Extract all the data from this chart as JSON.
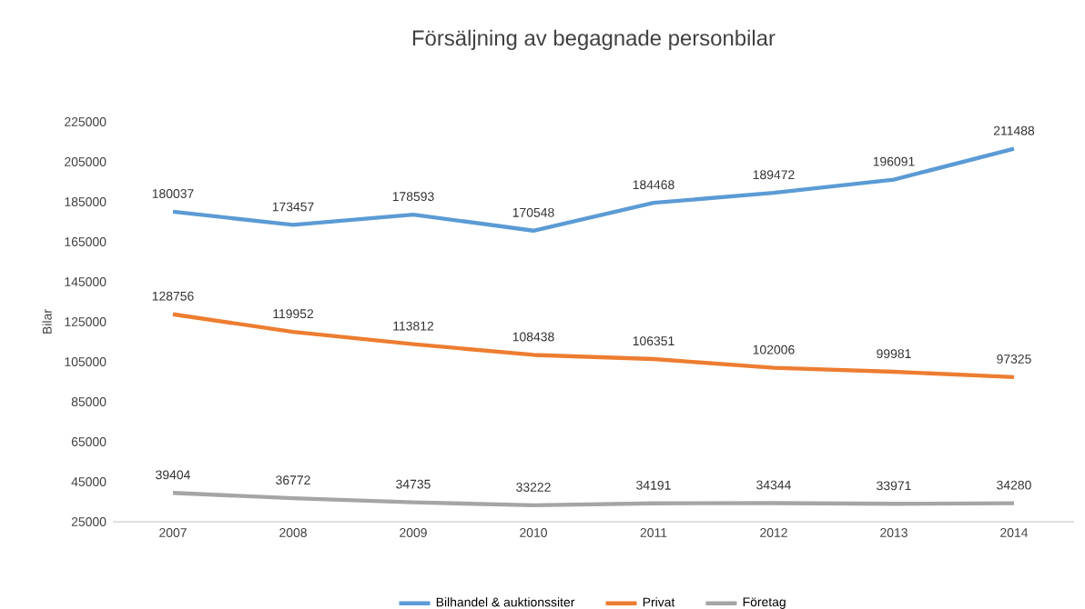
{
  "chart_data": {
    "type": "line",
    "title": "Försäljning av begagnade personbilar",
    "ylabel": "Bilar",
    "categories": [
      "2007",
      "2008",
      "2009",
      "2010",
      "2011",
      "2012",
      "2013",
      "2014"
    ],
    "series": [
      {
        "name": "Bilhandel & auktionssiter",
        "color": "#5b9bd5",
        "values": [
          180037,
          173457,
          178593,
          170548,
          184468,
          189472,
          196091,
          211488
        ]
      },
      {
        "name": "Privat",
        "color": "#ed7d31",
        "values": [
          128756,
          119952,
          113812,
          108438,
          106351,
          102006,
          99981,
          97325
        ]
      },
      {
        "name": "Företag",
        "color": "#a5a5a5",
        "values": [
          39404,
          36772,
          34735,
          33222,
          34191,
          34344,
          33971,
          34280
        ]
      }
    ],
    "ylim": [
      25000,
      225000
    ],
    "yticks": [
      25000,
      45000,
      65000,
      85000,
      105000,
      125000,
      145000,
      165000,
      185000,
      205000,
      225000
    ],
    "data_labels": true,
    "legend": "bottom",
    "grid": false,
    "marker": "none",
    "line_style": "solid"
  }
}
